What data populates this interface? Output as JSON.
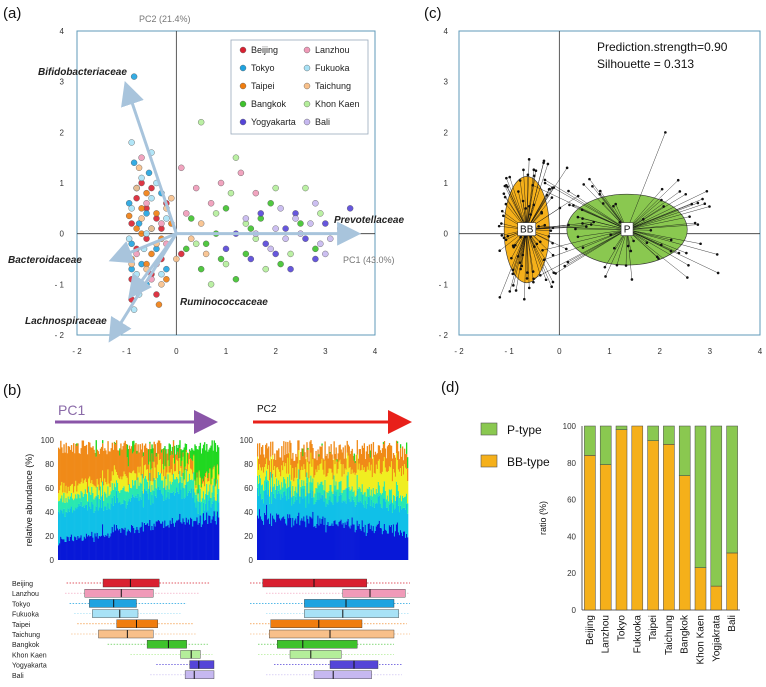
{
  "colors": {
    "Beijing": "#d92030",
    "Lanzhou": "#f09ab8",
    "Tokyo": "#1fa3e0",
    "Fukuoka": "#a8e2f6",
    "Taipei": "#f07d0f",
    "Taichung": "#f8c08a",
    "Bangkok": "#3ec22c",
    "Khon Kaen": "#b4ee9a",
    "Yogyakarta": "#5545d8",
    "Bali": "#c6b8f0",
    "frame": "#5f9ab8",
    "arrow": "#a8c4dc",
    "bb": "#f5b01a",
    "p": "#8ac850",
    "pc1_arrow": "#8a55a8",
    "pc2_arrow": "#e8201a"
  },
  "panel_labels": {
    "a": "(a)",
    "b": "(b)",
    "c": "(c)",
    "d": "(d)"
  },
  "chart_data": [
    {
      "id": "a",
      "type": "scatter",
      "title": "",
      "xlabel": "PC1 (43.0%)",
      "ylabel": "PC2 (21.4%)",
      "xlim": [
        -2,
        4
      ],
      "ylim": [
        -2,
        4
      ],
      "xticks": [
        "- 2",
        "- 1",
        "0",
        "1",
        "2",
        "3",
        "4"
      ],
      "yticks": [
        "4",
        "3",
        "2",
        "1",
        "0",
        "- 1",
        "- 2"
      ],
      "legend_position": "top-right",
      "legend": [
        "Beijing",
        "Tokyo",
        "Taipei",
        "Bangkok",
        "Yogyakarta",
        "Lanzhou",
        "Fukuoka",
        "Taichung",
        "Khon Kaen",
        "Bali"
      ],
      "arrows": [
        {
          "label": "Bifidobacteriaceae",
          "x": -1.0,
          "y": 2.9
        },
        {
          "label": "Prevotellaceae",
          "x": 3.6,
          "y": 0.0
        },
        {
          "label": "Bacteroidaceae",
          "x": -1.25,
          "y": -0.5
        },
        {
          "label": "Lachnospiraceae",
          "x": -1.3,
          "y": -2.05
        },
        {
          "label": "Ruminococcaceae",
          "x": -0.9,
          "y": -1.2
        }
      ],
      "series": [
        {
          "name": "Beijing",
          "points": [
            [
              -0.9,
              0.2
            ],
            [
              -0.6,
              0.5
            ],
            [
              -0.8,
              -0.3
            ],
            [
              -0.5,
              -0.8
            ],
            [
              -0.3,
              0.1
            ],
            [
              -0.7,
              1.0
            ],
            [
              -0.4,
              -1.2
            ],
            [
              -0.2,
              0.6
            ],
            [
              -0.9,
              -0.9
            ],
            [
              -0.6,
              -0.1
            ],
            [
              -0.3,
              -0.5
            ],
            [
              -0.5,
              0.9
            ],
            [
              -0.8,
              0.7
            ],
            [
              0.1,
              -0.4
            ],
            [
              -0.9,
              -1.3
            ],
            [
              -0.4,
              0.3
            ]
          ]
        },
        {
          "name": "Tokyo",
          "points": [
            [
              -0.85,
              3.1
            ],
            [
              -0.8,
              0.9
            ],
            [
              -0.6,
              0.4
            ],
            [
              -0.9,
              -0.2
            ],
            [
              -0.7,
              -0.6
            ],
            [
              -0.5,
              0.1
            ],
            [
              -0.95,
              0.6
            ],
            [
              -0.4,
              -0.3
            ],
            [
              -0.2,
              -0.7
            ],
            [
              -0.85,
              1.4
            ],
            [
              -0.6,
              -1.0
            ],
            [
              -0.75,
              0.2
            ],
            [
              -0.3,
              0.8
            ],
            [
              -0.9,
              -0.7
            ],
            [
              -0.55,
              1.2
            ]
          ]
        },
        {
          "name": "Taipei",
          "points": [
            [
              -0.8,
              0.1
            ],
            [
              -0.5,
              -0.4
            ],
            [
              -0.7,
              0.5
            ],
            [
              -0.3,
              -0.1
            ],
            [
              -0.9,
              -0.5
            ],
            [
              -0.6,
              0.8
            ],
            [
              -0.2,
              -0.9
            ],
            [
              -0.4,
              0.4
            ],
            [
              -0.8,
              -1.1
            ],
            [
              -0.1,
              0.2
            ],
            [
              -0.6,
              -0.6
            ],
            [
              -0.95,
              0.35
            ],
            [
              -0.35,
              -1.4
            ],
            [
              -0.7,
              0.0
            ]
          ]
        },
        {
          "name": "Bangkok",
          "points": [
            [
              0.3,
              0.3
            ],
            [
              0.6,
              -0.2
            ],
            [
              1.0,
              0.5
            ],
            [
              1.4,
              -0.4
            ],
            [
              0.8,
              0.0
            ],
            [
              1.7,
              0.3
            ],
            [
              2.1,
              -0.6
            ],
            [
              0.5,
              -0.7
            ],
            [
              1.2,
              -0.9
            ],
            [
              2.5,
              0.2
            ],
            [
              0.2,
              -0.3
            ],
            [
              1.9,
              0.6
            ],
            [
              0.9,
              -0.5
            ],
            [
              1.5,
              0.1
            ],
            [
              2.8,
              -0.3
            ]
          ]
        },
        {
          "name": "Yogyakarta",
          "points": [
            [
              1.2,
              0.0
            ],
            [
              1.8,
              -0.2
            ],
            [
              2.2,
              0.1
            ],
            [
              2.6,
              -0.1
            ],
            [
              3.0,
              0.2
            ],
            [
              1.5,
              -0.5
            ],
            [
              2.0,
              -0.4
            ],
            [
              2.4,
              0.4
            ],
            [
              3.3,
              0.0
            ],
            [
              1.0,
              -0.3
            ],
            [
              2.8,
              -0.5
            ],
            [
              1.7,
              0.4
            ],
            [
              3.5,
              0.5
            ],
            [
              2.3,
              -0.7
            ]
          ]
        },
        {
          "name": "Lanzhou",
          "points": [
            [
              -0.6,
              0.6
            ],
            [
              -0.3,
              0.2
            ],
            [
              -0.8,
              -0.4
            ],
            [
              0.4,
              0.9
            ],
            [
              1.3,
              1.2
            ],
            [
              0.9,
              1.0
            ],
            [
              -0.5,
              -0.9
            ],
            [
              0.2,
              0.4
            ],
            [
              -0.2,
              -0.2
            ],
            [
              1.6,
              0.8
            ],
            [
              0.7,
              0.6
            ],
            [
              -0.7,
              1.5
            ],
            [
              0.1,
              1.3
            ],
            [
              -0.4,
              -0.6
            ]
          ]
        },
        {
          "name": "Fukuoka",
          "points": [
            [
              -0.9,
              1.8
            ],
            [
              -0.7,
              1.1
            ],
            [
              -0.5,
              0.7
            ],
            [
              -0.8,
              -0.8
            ],
            [
              -0.6,
              0.0
            ],
            [
              -0.3,
              -0.8
            ],
            [
              -0.9,
              0.5
            ],
            [
              -0.4,
              1.0
            ],
            [
              -0.85,
              -1.5
            ],
            [
              -0.2,
              0.3
            ],
            [
              -0.65,
              -0.3
            ],
            [
              -0.5,
              1.6
            ],
            [
              -0.75,
              -1.2
            ],
            [
              -0.95,
              -0.1
            ]
          ]
        },
        {
          "name": "Taichung",
          "points": [
            [
              -0.7,
              0.3
            ],
            [
              -0.4,
              -0.2
            ],
            [
              -0.6,
              -0.7
            ],
            [
              -0.2,
              0.5
            ],
            [
              -0.8,
              0.9
            ],
            [
              0.0,
              -0.5
            ],
            [
              -0.5,
              0.1
            ],
            [
              0.3,
              -0.1
            ],
            [
              -0.9,
              -0.6
            ],
            [
              0.5,
              0.2
            ],
            [
              -0.3,
              -1.0
            ],
            [
              -0.1,
              0.7
            ],
            [
              0.6,
              -0.4
            ],
            [
              -0.75,
              1.3
            ]
          ]
        },
        {
          "name": "Khon Kaen",
          "points": [
            [
              0.5,
              2.2
            ],
            [
              1.2,
              1.5
            ],
            [
              0.8,
              0.4
            ],
            [
              1.6,
              -0.1
            ],
            [
              2.0,
              0.9
            ],
            [
              0.4,
              -0.2
            ],
            [
              1.0,
              -0.6
            ],
            [
              2.3,
              -0.4
            ],
            [
              1.4,
              0.2
            ],
            [
              0.7,
              -1.0
            ],
            [
              1.8,
              -0.7
            ],
            [
              2.9,
              0.4
            ],
            [
              1.1,
              0.8
            ],
            [
              2.6,
              0.9
            ]
          ]
        },
        {
          "name": "Bali",
          "points": [
            [
              1.6,
              0.0
            ],
            [
              2.0,
              0.1
            ],
            [
              2.5,
              0.0
            ],
            [
              2.9,
              -0.2
            ],
            [
              2.2,
              -0.1
            ],
            [
              2.7,
              0.2
            ],
            [
              3.1,
              -0.1
            ],
            [
              1.9,
              -0.3
            ],
            [
              2.4,
              0.3
            ],
            [
              3.3,
              0.1
            ],
            [
              1.4,
              0.3
            ],
            [
              2.8,
              0.6
            ],
            [
              2.1,
              0.5
            ],
            [
              3.0,
              -0.4
            ]
          ]
        }
      ]
    },
    {
      "id": "b",
      "type": "area",
      "title_left": "PC1",
      "title_right": "PC2",
      "ylabel": "relative abundance (%)",
      "yticks": [
        "100",
        "80",
        "60",
        "40",
        "20",
        "0"
      ],
      "ylim": [
        0,
        100
      ],
      "layers": [
        "blue",
        "cyan",
        "teal",
        "yellow",
        "orange",
        "green"
      ],
      "layer_colors": [
        "#0818d8",
        "#10c0e8",
        "#28e8b0",
        "#f0ee20",
        "#f08a18",
        "#20d820"
      ],
      "boxplots_left": [
        {
          "name": "Beijing",
          "min": 0.03,
          "q1": 0.27,
          "median": 0.45,
          "q3": 0.64,
          "max": 0.97
        },
        {
          "name": "Lanzhou",
          "min": 0.02,
          "q1": 0.15,
          "median": 0.39,
          "q3": 0.6,
          "max": 0.9
        },
        {
          "name": "Tokyo",
          "min": 0.05,
          "q1": 0.18,
          "median": 0.34,
          "q3": 0.49,
          "max": 0.82
        },
        {
          "name": "Fukuoka",
          "min": 0.08,
          "q1": 0.2,
          "median": 0.38,
          "q3": 0.5,
          "max": 0.78
        },
        {
          "name": "Taipei",
          "min": 0.1,
          "q1": 0.36,
          "median": 0.49,
          "q3": 0.63,
          "max": 0.86
        },
        {
          "name": "Taichung",
          "min": 0.06,
          "q1": 0.24,
          "median": 0.43,
          "q3": 0.6,
          "max": 0.88
        },
        {
          "name": "Bangkok",
          "min": 0.3,
          "q1": 0.56,
          "median": 0.7,
          "q3": 0.82,
          "max": 0.96
        },
        {
          "name": "Khon Kaen",
          "min": 0.45,
          "q1": 0.78,
          "median": 0.85,
          "q3": 0.91,
          "max": 0.99
        },
        {
          "name": "Yogyakarta",
          "min": 0.62,
          "q1": 0.84,
          "median": 0.9,
          "q3": 1.0,
          "max": 1.0
        },
        {
          "name": "Bali",
          "min": 0.58,
          "q1": 0.81,
          "median": 0.87,
          "q3": 1.0,
          "max": 1.0
        }
      ],
      "boxplots_right": [
        {
          "name": "Beijing",
          "min": 0.0,
          "q1": 0.08,
          "median": 0.4,
          "q3": 0.73,
          "max": 1.0
        },
        {
          "name": "Lanzhou",
          "min": 0.1,
          "q1": 0.58,
          "median": 0.75,
          "q3": 0.97,
          "max": 1.0
        },
        {
          "name": "Tokyo",
          "min": 0.0,
          "q1": 0.34,
          "median": 0.6,
          "q3": 0.9,
          "max": 1.0
        },
        {
          "name": "Fukuoka",
          "min": 0.1,
          "q1": 0.34,
          "median": 0.58,
          "q3": 0.93,
          "max": 1.0
        },
        {
          "name": "Taipei",
          "min": 0.0,
          "q1": 0.13,
          "median": 0.43,
          "q3": 0.7,
          "max": 0.98
        },
        {
          "name": "Taichung",
          "min": 0.0,
          "q1": 0.12,
          "median": 0.5,
          "q3": 0.9,
          "max": 1.0
        },
        {
          "name": "Bangkok",
          "min": 0.05,
          "q1": 0.17,
          "median": 0.33,
          "q3": 0.67,
          "max": 0.9
        },
        {
          "name": "Khon Kaen",
          "min": 0.05,
          "q1": 0.25,
          "median": 0.38,
          "q3": 0.57,
          "max": 0.9
        },
        {
          "name": "Yogyakarta",
          "min": 0.15,
          "q1": 0.5,
          "median": 0.65,
          "q3": 0.8,
          "max": 0.95
        },
        {
          "name": "Bali",
          "min": 0.1,
          "q1": 0.4,
          "median": 0.52,
          "q3": 0.76,
          "max": 0.95
        }
      ]
    },
    {
      "id": "c",
      "type": "scatter",
      "annotations": [
        "Prediction.strength=0.90",
        "Silhouette = 0.313"
      ],
      "xlim": [
        -2,
        4
      ],
      "ylim": [
        -2,
        4
      ],
      "xticks": [
        "- 2",
        "- 1",
        "0",
        "1",
        "2",
        "3",
        "4"
      ],
      "yticks": [
        "4",
        "3",
        "2",
        "1",
        "0",
        "- 1",
        "- 2"
      ],
      "clusters": [
        {
          "label": "BB",
          "cx": -0.65,
          "cy": 0.08,
          "rx": 0.45,
          "ry": 1.05
        },
        {
          "label": "P",
          "cx": 1.35,
          "cy": 0.08,
          "rx": 1.2,
          "ry": 0.7
        }
      ]
    },
    {
      "id": "d",
      "type": "bar",
      "ylabel": "ratio (%)",
      "ylim": [
        0,
        100
      ],
      "yticks": [
        "100",
        "80",
        "60",
        "40",
        "20",
        "0"
      ],
      "legend": [
        "P-type",
        "BB-type"
      ],
      "categories": [
        "Beijing",
        "Lanzhou",
        "Tokyo",
        "Fukuoka",
        "Taipei",
        "Taichung",
        "Bangkok",
        "Khon Kaen",
        "Yogjakrata",
        "Bali"
      ],
      "series": [
        {
          "name": "BB-type",
          "values": [
            84,
            79,
            98,
            100,
            92,
            90,
            73,
            23,
            13,
            31
          ]
        },
        {
          "name": "P-type",
          "values": [
            16,
            21,
            2,
            0,
            8,
            10,
            27,
            77,
            87,
            69
          ]
        }
      ]
    }
  ]
}
